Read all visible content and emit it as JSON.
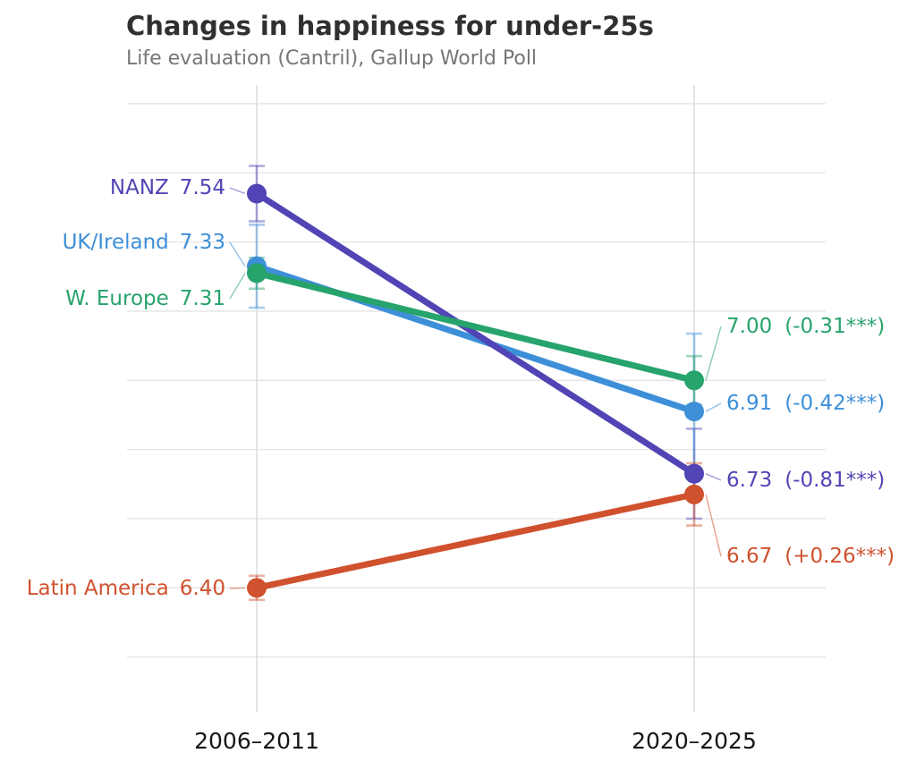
{
  "title": "Changes in happiness for under-25s",
  "subtitle": "Life evaluation (Cantril), Gallup World Poll",
  "chart_data": {
    "type": "line",
    "variant": "slope-chart-with-error-bars",
    "title": "Changes in happiness for under-25s",
    "subtitle": "Life evaluation (Cantril), Gallup World Poll",
    "x_categories": [
      "2006–2011",
      "2020–2025"
    ],
    "xlabel": "",
    "ylabel": "",
    "ylim": [
      6.1,
      7.9
    ],
    "gridlines_y": [
      6.2,
      6.4,
      6.6,
      6.8,
      7.0,
      7.2,
      7.4,
      7.6,
      7.8
    ],
    "grid": "light horizontal value gridlines plus vertical guide at each period",
    "legend_position": "direct-labels",
    "grid_color": "#e4e4e4",
    "guide_color": "#dcdcdc",
    "series": [
      {
        "name": "NANZ",
        "color": "#5145b5",
        "values": [
          7.54,
          6.73
        ],
        "ci_halfwidth": [
          0.08,
          0.13
        ],
        "start_label": "7.54",
        "end_label": "6.73",
        "change_label": "(-0.81***)"
      },
      {
        "name": "UK/Ireland",
        "color": "#3d8fd8",
        "values": [
          7.33,
          6.91
        ],
        "ci_halfwidth": [
          0.12,
          0.225
        ],
        "start_label": "7.33",
        "end_label": "6.91",
        "change_label": "(-0.42***)"
      },
      {
        "name": "W. Europe",
        "color": "#27a36c",
        "values": [
          7.31,
          7.0
        ],
        "ci_halfwidth": [
          0.045,
          0.07
        ],
        "start_label": "7.31",
        "end_label": "7.00",
        "change_label": "(-0.31***)"
      },
      {
        "name": "Latin America",
        "color": "#d0512e",
        "values": [
          6.4,
          6.67
        ],
        "ci_halfwidth": [
          0.035,
          0.09
        ],
        "start_label": "6.40",
        "end_label": "6.67",
        "change_label": "(+0.26***)"
      }
    ]
  }
}
